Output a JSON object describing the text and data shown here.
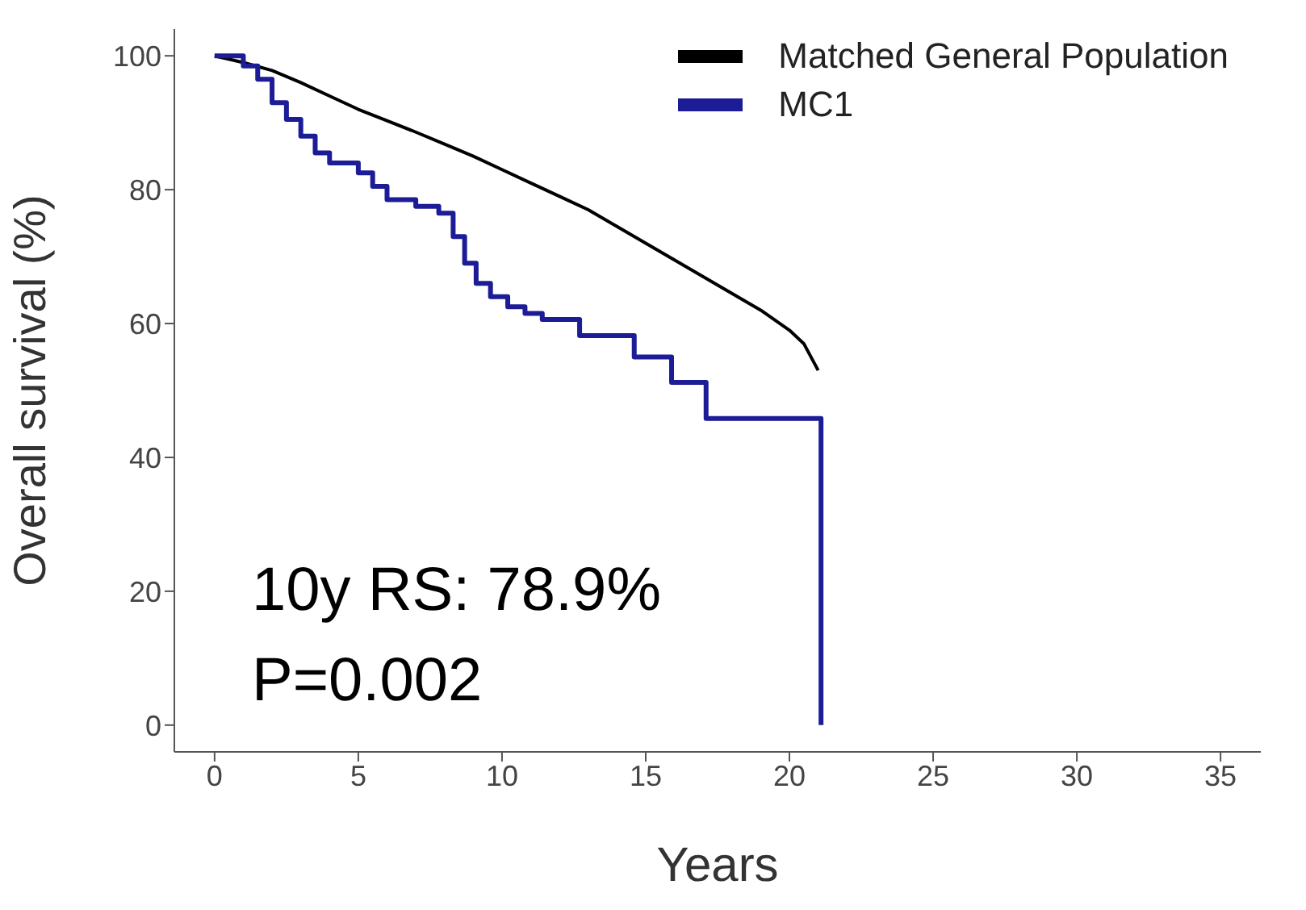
{
  "chart_data": {
    "type": "line",
    "xlabel": "Years",
    "ylabel": "Overall survival (%)",
    "xlim": [
      -1.4,
      36.4
    ],
    "xticks": [
      0,
      5,
      10,
      15,
      20,
      25,
      30,
      35
    ],
    "ylim": [
      -4,
      104
    ],
    "yticks": [
      0,
      20,
      40,
      60,
      80,
      100
    ],
    "grid": false,
    "legend": "top right",
    "marker": "none",
    "series": [
      {
        "name": "Matched General Population",
        "color": "#000000",
        "x": [
          0,
          1,
          2,
          3,
          4,
          5,
          6,
          7,
          8,
          9,
          10,
          11,
          12,
          13,
          14,
          15,
          16,
          17,
          18,
          19,
          20,
          20.5,
          21
        ],
        "values": [
          100,
          99,
          97.8,
          96,
          94,
          92,
          90.3,
          88.6,
          86.8,
          85,
          83,
          81,
          79,
          77,
          74.5,
          72,
          69.5,
          67,
          64.5,
          62,
          59,
          57,
          53
        ]
      },
      {
        "name": "MC1",
        "color": "#1c1c96",
        "type": "step",
        "x": [
          0,
          0.5,
          1,
          1.5,
          2,
          2.5,
          3,
          3.5,
          4,
          5,
          5.5,
          6,
          7,
          7.8,
          8.3,
          8.7,
          9.1,
          9.6,
          10.2,
          10.8,
          11.4,
          12.7,
          14.6,
          15.9,
          17.1,
          21.1
        ],
        "values": [
          100,
          100,
          98.5,
          96.5,
          93,
          90.5,
          88,
          85.5,
          84,
          82.5,
          80.5,
          78.5,
          77.5,
          76.5,
          73,
          69,
          66,
          64,
          62.5,
          61.5,
          60.6,
          58.2,
          55,
          51.2,
          45.8,
          0
        ]
      }
    ],
    "annotations": [
      "10y RS: 78.9%",
      "P=0.002"
    ]
  }
}
